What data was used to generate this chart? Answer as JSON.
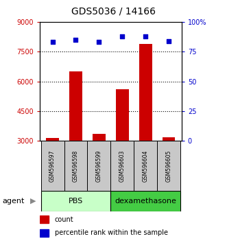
{
  "title": "GDS5036 / 14166",
  "samples": [
    "GSM596597",
    "GSM596598",
    "GSM596599",
    "GSM596603",
    "GSM596604",
    "GSM596605"
  ],
  "counts": [
    3150,
    6500,
    3350,
    5600,
    7900,
    3200
  ],
  "percentiles": [
    83,
    85,
    83,
    88,
    88,
    84
  ],
  "ylim_left": [
    3000,
    9000
  ],
  "ylim_right": [
    0,
    100
  ],
  "yticks_left": [
    3000,
    4500,
    6000,
    7500,
    9000
  ],
  "yticks_right": [
    0,
    25,
    50,
    75,
    100
  ],
  "ytick_labels_right": [
    "0",
    "25",
    "50",
    "75",
    "100%"
  ],
  "bar_color": "#cc0000",
  "dot_color": "#0000cc",
  "bar_width": 0.55,
  "sample_bg_color": "#c8c8c8",
  "pbs_color": "#c8ffc8",
  "dex_color": "#44cc44",
  "legend_count_color": "#cc0000",
  "legend_pct_color": "#0000cc",
  "gridline_yticks": [
    7500,
    6000,
    4500
  ]
}
